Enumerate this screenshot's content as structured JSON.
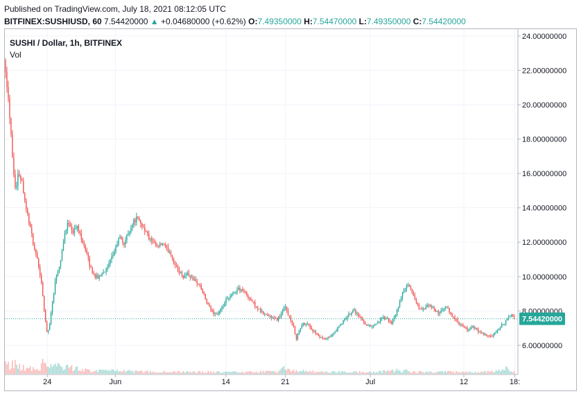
{
  "header": {
    "published": "Published on TradingView.com, July 18, 2021 08:12:05 UTC",
    "symbol": "BITFINEX:SUSHIUSD, 60",
    "last": "7.54420000",
    "arrow": "▲",
    "change": "+0.04680000 (+0.62%)",
    "o_label": "O:",
    "o_value": "7.49350000",
    "h_label": "H:",
    "h_value": "7.54470000",
    "l_label": "L:",
    "l_value": "7.49350000",
    "c_label": "C:",
    "c_value": "7.54420000"
  },
  "legend": {
    "title": "SUSHI / Dollar, 1h, BITFINEX",
    "volume": "Vol"
  },
  "colors": {
    "up": "#26a69a",
    "down": "#ef5350",
    "grid": "#f0f3fa",
    "axis": "#b2b5be"
  },
  "chart_data": {
    "type": "candlestick",
    "series": [
      {
        "name": "SUSHI / Dollar, 1h, BITFINEX",
        "kind": "price"
      },
      {
        "name": "Vol",
        "kind": "volume"
      }
    ],
    "ylim": [
      4.3,
      24.4
    ],
    "y_ticks": [
      {
        "value": 6,
        "label": "6.00000000"
      },
      {
        "value": 8,
        "label": "8.00000000"
      },
      {
        "value": 10,
        "label": "10.00000000"
      },
      {
        "value": 12,
        "label": "12.00000000"
      },
      {
        "value": 14,
        "label": "14.00000000"
      },
      {
        "value": 16,
        "label": "16.00000000"
      },
      {
        "value": 18,
        "label": "18.00000000"
      },
      {
        "value": 20,
        "label": "20.00000000"
      },
      {
        "value": 22,
        "label": "22.00000000"
      },
      {
        "value": 24,
        "label": "24.00000000"
      }
    ],
    "x_ticks": [
      {
        "day": 5,
        "label": "24"
      },
      {
        "day": 13,
        "label": "Jun"
      },
      {
        "day": 26,
        "label": "14"
      },
      {
        "day": 33,
        "label": "21"
      },
      {
        "day": 43,
        "label": "Jul"
      },
      {
        "day": 54,
        "label": "12"
      },
      {
        "day": 60,
        "label": "18:"
      }
    ],
    "x_range_days": [
      0,
      60.2
    ],
    "last_price": 7.5442,
    "last_price_label": "7.54420000",
    "path": [
      [
        0,
        22.6
      ],
      [
        0.25,
        21.2
      ],
      [
        0.5,
        19.8
      ],
      [
        0.75,
        18.2
      ],
      [
        1,
        16.2
      ],
      [
        1.3,
        15.0
      ],
      [
        1.6,
        16.1
      ],
      [
        2,
        15.6
      ],
      [
        2.5,
        14.0
      ],
      [
        3,
        12.8
      ],
      [
        3.5,
        11.5
      ],
      [
        4,
        10.6
      ],
      [
        4.4,
        9.3
      ],
      [
        4.7,
        7.6
      ],
      [
        5,
        6.6
      ],
      [
        5.3,
        7.4
      ],
      [
        5.7,
        8.9
      ],
      [
        6,
        10.0
      ],
      [
        6.5,
        10.8
      ],
      [
        7,
        12.4
      ],
      [
        7.5,
        13.2
      ],
      [
        8,
        12.6
      ],
      [
        8.5,
        12.9
      ],
      [
        9,
        12.3
      ],
      [
        9.5,
        11.6
      ],
      [
        10,
        10.6
      ],
      [
        10.5,
        10.1
      ],
      [
        11,
        9.9
      ],
      [
        11.5,
        10.3
      ],
      [
        12,
        10.4
      ],
      [
        12.5,
        11.0
      ],
      [
        13,
        11.6
      ],
      [
        13.5,
        12.3
      ],
      [
        14,
        11.9
      ],
      [
        14.5,
        12.5
      ],
      [
        15,
        13.1
      ],
      [
        15.5,
        13.4
      ],
      [
        16,
        13.1
      ],
      [
        16.5,
        12.7
      ],
      [
        17,
        12.2
      ],
      [
        17.5,
        11.9
      ],
      [
        18,
        11.7
      ],
      [
        18.5,
        11.9
      ],
      [
        19,
        11.6
      ],
      [
        19.5,
        11.4
      ],
      [
        20,
        10.7
      ],
      [
        20.5,
        10.3
      ],
      [
        21,
        10.0
      ],
      [
        21.5,
        10.2
      ],
      [
        22,
        9.9
      ],
      [
        22.5,
        9.7
      ],
      [
        23,
        9.4
      ],
      [
        23.5,
        8.8
      ],
      [
        24,
        8.2
      ],
      [
        24.5,
        7.9
      ],
      [
        25,
        7.8
      ],
      [
        25.5,
        8.1
      ],
      [
        26,
        8.6
      ],
      [
        26.5,
        8.8
      ],
      [
        27,
        9.1
      ],
      [
        27.5,
        9.3
      ],
      [
        28,
        9.2
      ],
      [
        28.5,
        8.9
      ],
      [
        29,
        8.6
      ],
      [
        29.5,
        8.3
      ],
      [
        30,
        8.0
      ],
      [
        30.5,
        7.8
      ],
      [
        31,
        7.7
      ],
      [
        31.5,
        7.6
      ],
      [
        32,
        7.5
      ],
      [
        32.5,
        7.8
      ],
      [
        33,
        8.2
      ],
      [
        33.5,
        7.6
      ],
      [
        34,
        7.0
      ],
      [
        34.3,
        6.4
      ],
      [
        34.6,
        6.8
      ],
      [
        35,
        7.2
      ],
      [
        35.5,
        7.3
      ],
      [
        36,
        7.0
      ],
      [
        36.5,
        6.7
      ],
      [
        37,
        6.5
      ],
      [
        37.5,
        6.3
      ],
      [
        38,
        6.4
      ],
      [
        38.5,
        6.6
      ],
      [
        39,
        6.9
      ],
      [
        39.5,
        7.2
      ],
      [
        40,
        7.5
      ],
      [
        40.5,
        7.8
      ],
      [
        41,
        8.1
      ],
      [
        41.5,
        7.8
      ],
      [
        42,
        7.5
      ],
      [
        42.5,
        7.2
      ],
      [
        43,
        7.1
      ],
      [
        43.5,
        7.2
      ],
      [
        44,
        7.4
      ],
      [
        44.5,
        7.6
      ],
      [
        45,
        7.5
      ],
      [
        45.5,
        7.3
      ],
      [
        46,
        7.8
      ],
      [
        46.5,
        8.6
      ],
      [
        47,
        9.3
      ],
      [
        47.5,
        9.5
      ],
      [
        48,
        9.0
      ],
      [
        48.5,
        8.4
      ],
      [
        49,
        8.0
      ],
      [
        49.5,
        8.2
      ],
      [
        50,
        8.3
      ],
      [
        50.5,
        8.1
      ],
      [
        51,
        7.9
      ],
      [
        51.5,
        8.0
      ],
      [
        52,
        8.2
      ],
      [
        52.5,
        7.8
      ],
      [
        53,
        7.5
      ],
      [
        53.5,
        7.2
      ],
      [
        54,
        7.0
      ],
      [
        54.5,
        6.9
      ],
      [
        55,
        7.1
      ],
      [
        55.5,
        6.9
      ],
      [
        56,
        6.7
      ],
      [
        56.5,
        6.6
      ],
      [
        57,
        6.5
      ],
      [
        57.5,
        6.6
      ],
      [
        58,
        6.9
      ],
      [
        58.5,
        7.2
      ],
      [
        59,
        7.4
      ],
      [
        59.5,
        7.8
      ],
      [
        60,
        7.5442
      ]
    ],
    "volume_max": 1.0,
    "volume_profile": [
      [
        0,
        0.55
      ],
      [
        0.6,
        0.5
      ],
      [
        1,
        0.6
      ],
      [
        1.5,
        0.45
      ],
      [
        2,
        0.4
      ],
      [
        3,
        0.3
      ],
      [
        4,
        0.35
      ],
      [
        4.8,
        0.95
      ],
      [
        5,
        0.9
      ],
      [
        5.5,
        0.45
      ],
      [
        6,
        0.55
      ],
      [
        7,
        0.4
      ],
      [
        8,
        0.35
      ],
      [
        9,
        0.25
      ],
      [
        10,
        0.2
      ],
      [
        12,
        0.18
      ],
      [
        14,
        0.15
      ],
      [
        16,
        0.14
      ],
      [
        18,
        0.12
      ],
      [
        20,
        0.12
      ],
      [
        22,
        0.1
      ],
      [
        24,
        0.12
      ],
      [
        26,
        0.1
      ],
      [
        28,
        0.1
      ],
      [
        30,
        0.12
      ],
      [
        32,
        0.14
      ],
      [
        33,
        0.35
      ],
      [
        34,
        0.2
      ],
      [
        36,
        0.12
      ],
      [
        38,
        0.1
      ],
      [
        40,
        0.12
      ],
      [
        42,
        0.1
      ],
      [
        44,
        0.12
      ],
      [
        46,
        0.2
      ],
      [
        47,
        0.18
      ],
      [
        48,
        0.12
      ],
      [
        50,
        0.1
      ],
      [
        52,
        0.12
      ],
      [
        54,
        0.1
      ],
      [
        56,
        0.12
      ],
      [
        58,
        0.14
      ],
      [
        59,
        0.3
      ],
      [
        60,
        0.12
      ]
    ]
  }
}
